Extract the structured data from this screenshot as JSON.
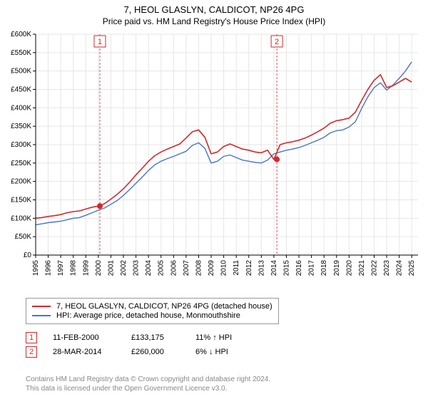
{
  "title": "7, HEOL GLASLYN, CALDICOT, NP26 4PG",
  "subtitle": "Price paid vs. HM Land Registry's House Price Index (HPI)",
  "chart": {
    "type": "line",
    "background_color": "#ffffff",
    "grid_color": "#e6e6e6",
    "axis_color": "#000000",
    "label_fontsize": 10,
    "x_years": [
      1995,
      1996,
      1997,
      1998,
      1999,
      2000,
      2001,
      2002,
      2003,
      2004,
      2005,
      2006,
      2007,
      2008,
      2009,
      2010,
      2011,
      2012,
      2013,
      2014,
      2015,
      2016,
      2017,
      2018,
      2019,
      2020,
      2021,
      2022,
      2023,
      2024,
      2025
    ],
    "x_domain": [
      1995,
      2025.5
    ],
    "ylim": [
      0,
      600000
    ],
    "ytick_step": 50000,
    "y_ticks": [
      "£0",
      "£50K",
      "£100K",
      "£150K",
      "£200K",
      "£250K",
      "£300K",
      "£350K",
      "£400K",
      "£450K",
      "£500K",
      "£550K",
      "£600K"
    ],
    "series": [
      {
        "name": "hpi",
        "color": "#4a74c9",
        "line_width": 1.4,
        "x": [
          1995,
          1995.5,
          1996,
          1996.5,
          1997,
          1997.5,
          1998,
          1998.5,
          1999,
          1999.5,
          2000,
          2000.5,
          2001,
          2001.5,
          2002,
          2002.5,
          2003,
          2003.5,
          2004,
          2004.5,
          2005,
          2005.5,
          2006,
          2006.5,
          2007,
          2007.5,
          2008,
          2008.5,
          2009,
          2009.5,
          2010,
          2010.5,
          2011,
          2011.5,
          2012,
          2012.5,
          2013,
          2013.5,
          2014,
          2014.5,
          2015,
          2015.5,
          2016,
          2016.5,
          2017,
          2017.5,
          2018,
          2018.5,
          2019,
          2019.5,
          2020,
          2020.5,
          2021,
          2021.5,
          2022,
          2022.5,
          2023,
          2023.5,
          2024,
          2024.5,
          2025
        ],
        "y": [
          82000,
          85000,
          88000,
          90000,
          92000,
          96000,
          100000,
          102000,
          108000,
          115000,
          122000,
          128000,
          138000,
          148000,
          162000,
          178000,
          195000,
          212000,
          230000,
          245000,
          255000,
          262000,
          268000,
          275000,
          282000,
          298000,
          305000,
          290000,
          250000,
          255000,
          268000,
          272000,
          265000,
          258000,
          255000,
          252000,
          250000,
          258000,
          275000,
          280000,
          285000,
          288000,
          292000,
          298000,
          305000,
          312000,
          320000,
          332000,
          338000,
          340000,
          348000,
          362000,
          398000,
          430000,
          455000,
          468000,
          448000,
          462000,
          480000,
          500000,
          525000
        ]
      },
      {
        "name": "price_paid",
        "color": "#d62728",
        "line_width": 1.6,
        "x": [
          1995,
          1995.5,
          1996,
          1996.5,
          1997,
          1997.5,
          1998,
          1998.5,
          1999,
          1999.5,
          2000,
          2000.5,
          2001,
          2001.5,
          2002,
          2002.5,
          2003,
          2003.5,
          2004,
          2004.5,
          2005,
          2005.5,
          2006,
          2006.5,
          2007,
          2007.5,
          2008,
          2008.5,
          2009,
          2009.5,
          2010,
          2010.5,
          2011,
          2011.5,
          2012,
          2012.5,
          2013,
          2013.5,
          2014,
          2014.5,
          2015,
          2015.5,
          2016,
          2016.5,
          2017,
          2017.5,
          2018,
          2018.5,
          2019,
          2019.5,
          2020,
          2020.5,
          2021,
          2021.5,
          2022,
          2022.5,
          2023,
          2023.5,
          2024,
          2024.5,
          2025
        ],
        "y": [
          100000,
          102000,
          105000,
          107000,
          110000,
          115000,
          118000,
          120000,
          125000,
          130000,
          133175,
          140000,
          152000,
          165000,
          180000,
          198000,
          218000,
          236000,
          255000,
          270000,
          280000,
          288000,
          295000,
          302000,
          318000,
          335000,
          340000,
          320000,
          275000,
          280000,
          295000,
          302000,
          295000,
          288000,
          285000,
          280000,
          278000,
          285000,
          260000,
          300000,
          305000,
          308000,
          312000,
          318000,
          326000,
          335000,
          345000,
          358000,
          365000,
          368000,
          372000,
          388000,
          420000,
          450000,
          475000,
          490000,
          455000,
          460000,
          470000,
          480000,
          470000
        ]
      }
    ],
    "annotations": [
      {
        "n": "1",
        "x": 2000.12,
        "border": "#d62728"
      },
      {
        "n": "2",
        "x": 2014.24,
        "border": "#d62728"
      }
    ],
    "sale_markers": [
      {
        "x": 2000.12,
        "y": 133175,
        "color": "#d62728"
      },
      {
        "x": 2014.24,
        "y": 260000,
        "color": "#d62728"
      }
    ]
  },
  "legend": {
    "border_color": "#999999",
    "items": [
      {
        "color": "#d62728",
        "label": "7, HEOL GLASLYN, CALDICOT, NP26 4PG (detached house)"
      },
      {
        "color": "#4a74c9",
        "label": "HPI: Average price, detached house, Monmouthshire"
      }
    ]
  },
  "sales": [
    {
      "n": "1",
      "date": "11-FEB-2000",
      "price": "£133,175",
      "delta": "11% ↑ HPI"
    },
    {
      "n": "2",
      "date": "28-MAR-2014",
      "price": "£260,000",
      "delta": "6% ↓ HPI"
    }
  ],
  "footer_l1": "Contains HM Land Registry data © Crown copyright and database right 2024.",
  "footer_l2": "This data is licensed under the Open Government Licence v3.0."
}
